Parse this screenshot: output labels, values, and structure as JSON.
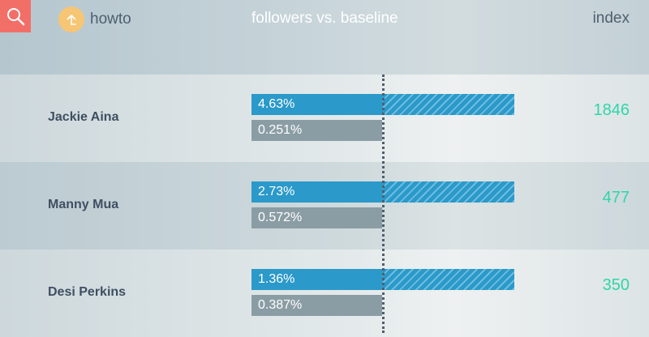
{
  "header": {
    "howto_label": "howto",
    "title": "followers vs. baseline",
    "index_label": "index"
  },
  "icons": {
    "search": "search-icon",
    "howto": "arrow-up-circle-icon"
  },
  "colors": {
    "search_button": "#f26f68",
    "howto_circle": "#f6c675",
    "followers_bar": "#2b99c9",
    "baseline_bar": "#8b9da4",
    "index_text": "#2ed6a9",
    "name_text": "#3f4f61"
  },
  "rows": [
    {
      "name": "Jackie Aina",
      "followers_pct": "4.63%",
      "followers_value": 4.63,
      "baseline_pct": "0.251%",
      "baseline_value": 0.251,
      "index": "1846"
    },
    {
      "name": "Manny Mua",
      "followers_pct": "2.73%",
      "followers_value": 2.73,
      "baseline_pct": "0.572%",
      "baseline_value": 0.572,
      "index": "477"
    },
    {
      "name": "Desi Perkins",
      "followers_pct": "1.36%",
      "followers_value": 1.36,
      "baseline_pct": "0.387%",
      "baseline_value": 0.387,
      "index": "350"
    }
  ]
}
